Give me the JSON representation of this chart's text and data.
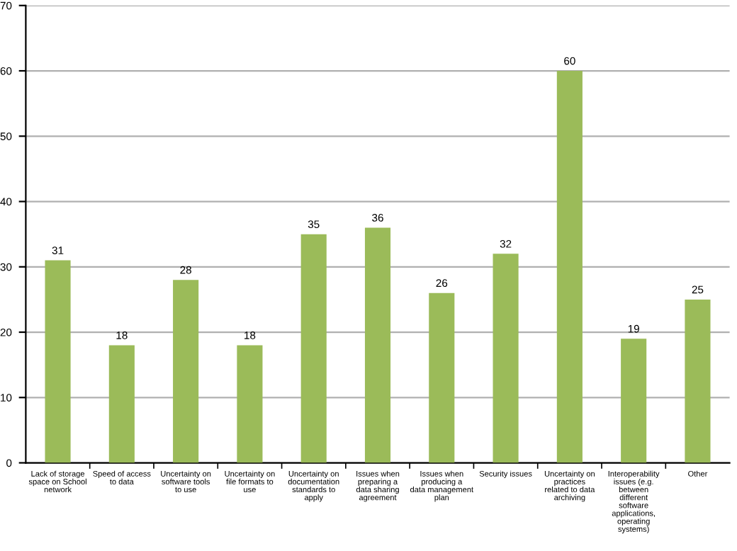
{
  "chart_data": {
    "type": "bar",
    "categories": [
      "Lack of storage space on School network",
      "Speed of access to data",
      "Uncertainty on software tools to use",
      "Uncertainty on file formats to use",
      "Uncertainty on documentation standards to apply",
      "Issues when preparing a data sharing agreement",
      "Issues when producing a data management plan",
      "Security issues",
      "Uncertainty on practices related to data archiving",
      "Interoperability issues (e.g. between different software applications, operating systems)",
      "Other"
    ],
    "values": [
      31,
      18,
      28,
      18,
      35,
      36,
      26,
      32,
      60,
      19,
      25
    ],
    "color": "#9bbb59",
    "ylim": [
      0,
      70
    ],
    "yticks": [
      0,
      10,
      20,
      30,
      40,
      50,
      60,
      70
    ],
    "grid": "y",
    "data_labels": true,
    "legend": false
  }
}
